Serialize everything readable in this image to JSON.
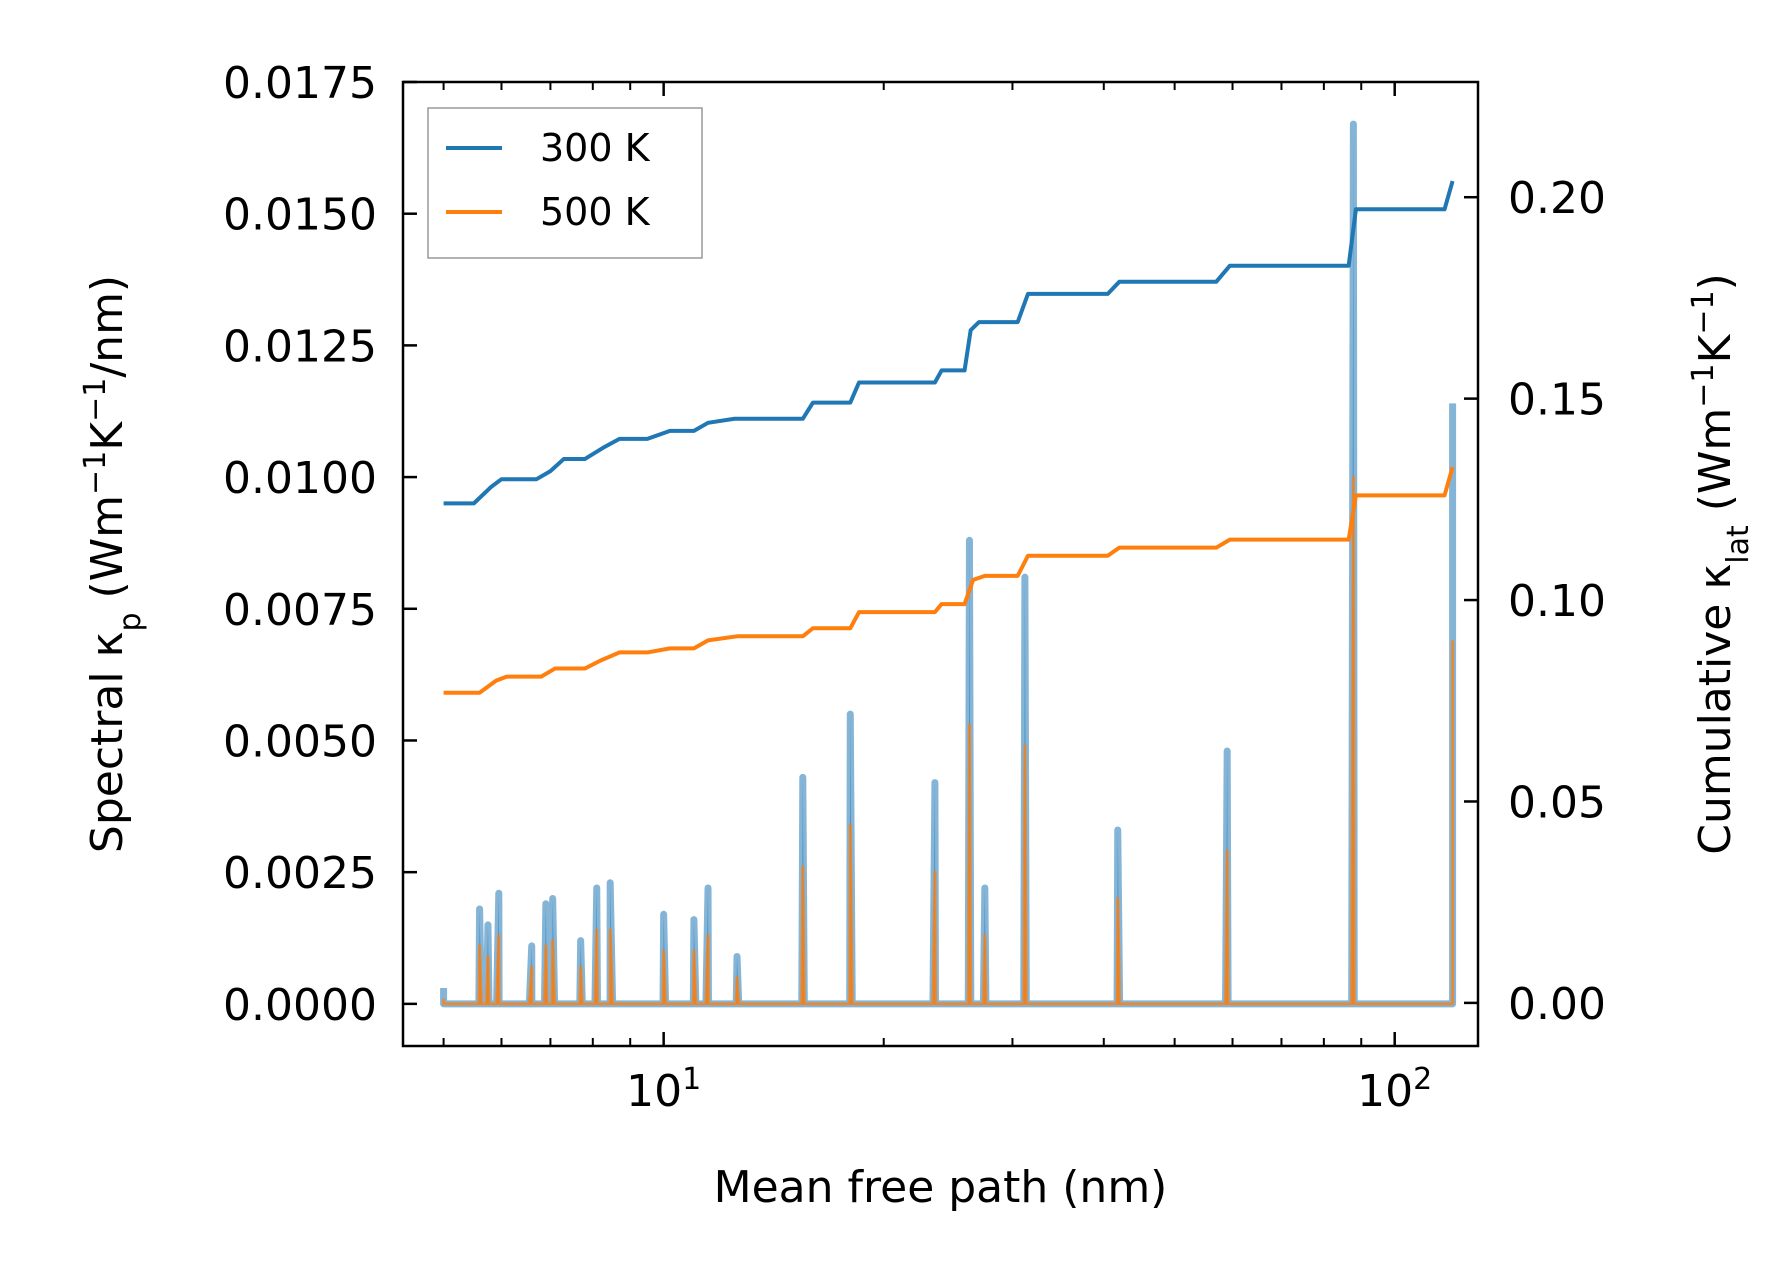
{
  "chart_data": {
    "type": "line",
    "xscale": "log",
    "xlabel": "Mean free path (nm)",
    "ylabel_left": {
      "prefix": "Spectral κ",
      "sub": "p",
      "unit_prefix": " (Wm",
      "sup1": "−1",
      "unit_mid": "K",
      "sup2": "−1",
      "unit_suffix": "/nm)"
    },
    "ylabel_right": {
      "prefix": "Cumulative κ",
      "sub": "lat",
      "unit_prefix": " (Wm",
      "sup1": "−1",
      "unit_mid": "K",
      "sup2": "−1",
      "unit_suffix": ")"
    },
    "xlim": [
      4.4,
      130
    ],
    "ylim_left": [
      -0.0008,
      0.0175
    ],
    "ylim_right": [
      -0.0107,
      0.2286
    ],
    "x_ticks": [
      {
        "value": 10,
        "base": "10",
        "exp": "1"
      },
      {
        "value": 100,
        "base": "10",
        "exp": "2"
      }
    ],
    "y_ticks_left": [
      {
        "value": 0.0,
        "label": "0.0000"
      },
      {
        "value": 0.0025,
        "label": "0.0025"
      },
      {
        "value": 0.005,
        "label": "0.0050"
      },
      {
        "value": 0.0075,
        "label": "0.0075"
      },
      {
        "value": 0.01,
        "label": "0.0100"
      },
      {
        "value": 0.0125,
        "label": "0.0125"
      },
      {
        "value": 0.015,
        "label": "0.0150"
      },
      {
        "value": 0.0175,
        "label": "0.0175"
      }
    ],
    "y_ticks_right": [
      {
        "value": 0.0,
        "label": "0.00"
      },
      {
        "value": 0.05,
        "label": "0.05"
      },
      {
        "value": 0.1,
        "label": "0.10"
      },
      {
        "value": 0.15,
        "label": "0.15"
      },
      {
        "value": 0.2,
        "label": "0.20"
      }
    ],
    "legend": {
      "location": "upper-left",
      "entries": [
        "300 K",
        "500 K"
      ]
    },
    "series": [
      {
        "name": "300 K",
        "color": "#1f77b4",
        "spectral_peaks": [
          [
            5.0,
            0.0003
          ],
          [
            5.6,
            0.0018
          ],
          [
            5.75,
            0.0015
          ],
          [
            5.95,
            0.0021
          ],
          [
            6.6,
            0.0011
          ],
          [
            6.9,
            0.0019
          ],
          [
            7.05,
            0.002
          ],
          [
            7.7,
            0.0012
          ],
          [
            8.1,
            0.0022
          ],
          [
            8.45,
            0.0023
          ],
          [
            10.0,
            0.0017
          ],
          [
            11.0,
            0.0016
          ],
          [
            11.5,
            0.0022
          ],
          [
            12.6,
            0.0009
          ],
          [
            15.5,
            0.0043
          ],
          [
            18.0,
            0.0055
          ],
          [
            23.5,
            0.0042
          ],
          [
            26.2,
            0.0088
          ],
          [
            27.5,
            0.0022
          ],
          [
            31.2,
            0.0081
          ],
          [
            41.8,
            0.0033
          ],
          [
            59.0,
            0.0048
          ],
          [
            87.8,
            0.0167
          ],
          [
            120.0,
            0.0114
          ]
        ],
        "cumulative": [
          [
            5.0,
            0.124
          ],
          [
            5.5,
            0.124
          ],
          [
            5.8,
            0.128
          ],
          [
            6.0,
            0.13
          ],
          [
            6.7,
            0.13
          ],
          [
            7.0,
            0.132
          ],
          [
            7.3,
            0.135
          ],
          [
            7.8,
            0.135
          ],
          [
            8.3,
            0.138
          ],
          [
            8.7,
            0.14
          ],
          [
            9.5,
            0.14
          ],
          [
            10.2,
            0.142
          ],
          [
            11.0,
            0.142
          ],
          [
            11.5,
            0.144
          ],
          [
            12.5,
            0.145
          ],
          [
            15.5,
            0.145
          ],
          [
            16.0,
            0.149
          ],
          [
            18.0,
            0.149
          ],
          [
            18.5,
            0.154
          ],
          [
            23.5,
            0.154
          ],
          [
            24.0,
            0.157
          ],
          [
            25.8,
            0.157
          ],
          [
            26.3,
            0.167
          ],
          [
            27.0,
            0.169
          ],
          [
            30.5,
            0.169
          ],
          [
            31.5,
            0.176
          ],
          [
            40.5,
            0.176
          ],
          [
            42.0,
            0.179
          ],
          [
            57.0,
            0.179
          ],
          [
            59.5,
            0.183
          ],
          [
            86.5,
            0.183
          ],
          [
            88.5,
            0.197
          ],
          [
            117.0,
            0.197
          ],
          [
            120.0,
            0.204
          ]
        ]
      },
      {
        "name": "500 K",
        "color": "#ff7f0e",
        "spectral_peaks": [
          [
            5.0,
            0.0001
          ],
          [
            5.6,
            0.0011
          ],
          [
            5.75,
            0.0009
          ],
          [
            5.95,
            0.0013
          ],
          [
            6.6,
            0.0007
          ],
          [
            6.9,
            0.0011
          ],
          [
            7.05,
            0.0012
          ],
          [
            7.7,
            0.0007
          ],
          [
            8.1,
            0.0014
          ],
          [
            8.45,
            0.0014
          ],
          [
            10.0,
            0.001
          ],
          [
            11.0,
            0.001
          ],
          [
            11.5,
            0.0013
          ],
          [
            12.6,
            0.0005
          ],
          [
            15.5,
            0.0026
          ],
          [
            18.0,
            0.0034
          ],
          [
            23.5,
            0.0025
          ],
          [
            26.2,
            0.0053
          ],
          [
            27.5,
            0.0013
          ],
          [
            31.2,
            0.0049
          ],
          [
            41.8,
            0.002
          ],
          [
            59.0,
            0.0029
          ],
          [
            87.8,
            0.01
          ],
          [
            120.0,
            0.0069
          ]
        ],
        "cumulative": [
          [
            5.0,
            0.077
          ],
          [
            5.6,
            0.077
          ],
          [
            5.9,
            0.08
          ],
          [
            6.1,
            0.081
          ],
          [
            6.8,
            0.081
          ],
          [
            7.1,
            0.083
          ],
          [
            7.8,
            0.083
          ],
          [
            8.2,
            0.085
          ],
          [
            8.7,
            0.087
          ],
          [
            9.5,
            0.087
          ],
          [
            10.2,
            0.088
          ],
          [
            11.0,
            0.088
          ],
          [
            11.5,
            0.09
          ],
          [
            12.6,
            0.091
          ],
          [
            15.5,
            0.091
          ],
          [
            16.0,
            0.093
          ],
          [
            18.0,
            0.093
          ],
          [
            18.5,
            0.097
          ],
          [
            23.5,
            0.097
          ],
          [
            24.0,
            0.099
          ],
          [
            25.8,
            0.099
          ],
          [
            26.5,
            0.105
          ],
          [
            27.5,
            0.106
          ],
          [
            30.5,
            0.106
          ],
          [
            31.5,
            0.111
          ],
          [
            40.5,
            0.111
          ],
          [
            42.0,
            0.113
          ],
          [
            57.0,
            0.113
          ],
          [
            59.5,
            0.115
          ],
          [
            86.5,
            0.115
          ],
          [
            88.5,
            0.126
          ],
          [
            117.0,
            0.126
          ],
          [
            120.0,
            0.133
          ]
        ]
      }
    ]
  }
}
